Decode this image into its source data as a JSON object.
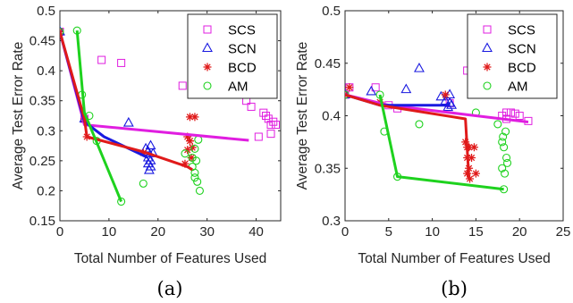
{
  "chart_data": [
    {
      "type": "scatter",
      "caption": "(a)",
      "xlabel": "Total Number of Features Used",
      "ylabel": "Average Test Error Rate",
      "xlim": [
        0,
        45
      ],
      "ylim": [
        0.15,
        0.5
      ],
      "xticks": [
        "0",
        "10",
        "20",
        "30",
        "40"
      ],
      "xtick_values": [
        0,
        10,
        20,
        30,
        40
      ],
      "yticks": [
        "0.15",
        "0.2",
        "0.25",
        "0.3",
        "0.35",
        "0.4",
        "0.45",
        "0.5"
      ],
      "ytick_values": [
        0.15,
        0.2,
        0.25,
        0.3,
        0.35,
        0.4,
        0.45,
        0.5
      ],
      "legend_position": "top-right",
      "series": [
        {
          "name": "SCS",
          "color": "#e01ee0",
          "marker": "square",
          "points": [
            [
              0,
              0.465
            ],
            [
              5,
              0.32
            ],
            [
              8.5,
              0.418
            ],
            [
              12.5,
              0.413
            ],
            [
              25,
              0.375
            ],
            [
              38,
              0.35
            ],
            [
              39,
              0.34
            ],
            [
              41,
              0.365
            ],
            [
              41.5,
              0.33
            ],
            [
              42,
              0.325
            ],
            [
              42.5,
              0.32
            ],
            [
              43,
              0.31
            ],
            [
              43.5,
              0.315
            ],
            [
              44,
              0.31
            ],
            [
              43,
              0.295
            ],
            [
              40.5,
              0.29
            ]
          ],
          "line": [
            [
              0,
              0.465
            ],
            [
              5,
              0.31
            ],
            [
              38.5,
              0.284
            ]
          ]
        },
        {
          "name": "SCN",
          "color": "#1a1ae0",
          "marker": "triangle",
          "points": [
            [
              0,
              0.465
            ],
            [
              5,
              0.32
            ],
            [
              14,
              0.313
            ],
            [
              17.5,
              0.27
            ],
            [
              18,
              0.265
            ],
            [
              18.5,
              0.275
            ],
            [
              18,
              0.255
            ],
            [
              18.5,
              0.25
            ],
            [
              18,
              0.245
            ],
            [
              18.5,
              0.24
            ],
            [
              19,
              0.262
            ],
            [
              18.2,
              0.234
            ]
          ],
          "line": [
            [
              0,
              0.465
            ],
            [
              5,
              0.315
            ],
            [
              9,
              0.29
            ],
            [
              18,
              0.255
            ]
          ]
        },
        {
          "name": "BCD",
          "color": "#e01a1a",
          "marker": "star",
          "points": [
            [
              0,
              0.465
            ],
            [
              5,
              0.32
            ],
            [
              5.5,
              0.29
            ],
            [
              17,
              0.263
            ],
            [
              25.5,
              0.245
            ],
            [
              26,
              0.268
            ],
            [
              26.5,
              0.283
            ],
            [
              26,
              0.29
            ],
            [
              26.5,
              0.323
            ],
            [
              27.5,
              0.323
            ],
            [
              27,
              0.272
            ],
            [
              26.8,
              0.255
            ]
          ],
          "line": [
            [
              0,
              0.465
            ],
            [
              5,
              0.32
            ],
            [
              5.5,
              0.29
            ],
            [
              17,
              0.265
            ],
            [
              26,
              0.24
            ],
            [
              27,
              0.235
            ]
          ]
        },
        {
          "name": "AM",
          "color": "#1ed21e",
          "marker": "circle",
          "points": [
            [
              0,
              0.465
            ],
            [
              3.5,
              0.467
            ],
            [
              4.5,
              0.36
            ],
            [
              6,
              0.325
            ],
            [
              7.5,
              0.283
            ],
            [
              12.5,
              0.182
            ],
            [
              17,
              0.212
            ],
            [
              25.5,
              0.262
            ],
            [
              27,
              0.24
            ],
            [
              27.5,
              0.23
            ],
            [
              27.5,
              0.222
            ],
            [
              28,
              0.215
            ],
            [
              28.5,
              0.2
            ],
            [
              27.5,
              0.27
            ],
            [
              27.8,
              0.25
            ],
            [
              28.2,
              0.285
            ],
            [
              27,
              0.255
            ]
          ],
          "line": [
            [
              3.5,
              0.467
            ],
            [
              5,
              0.33
            ],
            [
              12.5,
              0.182
            ]
          ]
        }
      ]
    },
    {
      "type": "scatter",
      "caption": "(b)",
      "xlabel": "Total Number of Features Used",
      "ylabel": "Average Test Error Rate",
      "xlim": [
        0,
        25
      ],
      "ylim": [
        0.3,
        0.5
      ],
      "xticks": [
        "0",
        "5",
        "10",
        "15",
        "20",
        "25"
      ],
      "xtick_values": [
        0,
        5,
        10,
        15,
        20,
        25
      ],
      "yticks": [
        "0.3",
        "0.35",
        "0.4",
        "0.45",
        "0.5"
      ],
      "ytick_values": [
        0.3,
        0.35,
        0.4,
        0.45,
        0.5
      ],
      "legend_position": "top-right",
      "series": [
        {
          "name": "SCS",
          "color": "#e01ee0",
          "marker": "square",
          "points": [
            [
              0,
              0.42
            ],
            [
              0.5,
              0.427
            ],
            [
              3.5,
              0.427
            ],
            [
              5,
              0.41
            ],
            [
              6,
              0.407
            ],
            [
              12,
              0.412
            ],
            [
              14,
              0.443
            ],
            [
              15.5,
              0.43
            ],
            [
              18,
              0.4
            ],
            [
              18.5,
              0.403
            ],
            [
              19,
              0.403
            ],
            [
              19.5,
              0.402
            ],
            [
              20,
              0.4
            ],
            [
              21,
              0.395
            ],
            [
              18.5,
              0.397
            ]
          ],
          "line": [
            [
              0,
              0.42
            ],
            [
              5,
              0.41
            ],
            [
              21,
              0.394
            ]
          ]
        },
        {
          "name": "SCN",
          "color": "#1a1ae0",
          "marker": "triangle",
          "points": [
            [
              0,
              0.42
            ],
            [
              3,
              0.423
            ],
            [
              7,
              0.425
            ],
            [
              8.5,
              0.445
            ],
            [
              11,
              0.418
            ],
            [
              11.5,
              0.414
            ],
            [
              12,
              0.42
            ],
            [
              12,
              0.412
            ],
            [
              11.8,
              0.408
            ],
            [
              12.2,
              0.41
            ]
          ],
          "line": [
            [
              0,
              0.42
            ],
            [
              4,
              0.41
            ],
            [
              12,
              0.41
            ]
          ]
        },
        {
          "name": "BCD",
          "color": "#e01a1a",
          "marker": "star",
          "points": [
            [
              0,
              0.42
            ],
            [
              0.5,
              0.427
            ],
            [
              4,
              0.413
            ],
            [
              11.5,
              0.42
            ],
            [
              13.8,
              0.375
            ],
            [
              14,
              0.37
            ],
            [
              14.2,
              0.37
            ],
            [
              14,
              0.36
            ],
            [
              14.2,
              0.35
            ],
            [
              14,
              0.345
            ],
            [
              14.3,
              0.34
            ],
            [
              15,
              0.345
            ],
            [
              14.5,
              0.36
            ],
            [
              14.8,
              0.37
            ]
          ],
          "line": [
            [
              0,
              0.42
            ],
            [
              4,
              0.41
            ],
            [
              13.8,
              0.397
            ],
            [
              14.2,
              0.34
            ]
          ]
        },
        {
          "name": "AM",
          "color": "#1ed21e",
          "marker": "circle",
          "points": [
            [
              0,
              0.42
            ],
            [
              4,
              0.42
            ],
            [
              4.5,
              0.385
            ],
            [
              6,
              0.342
            ],
            [
              8.5,
              0.392
            ],
            [
              15,
              0.403
            ],
            [
              17.5,
              0.392
            ],
            [
              18,
              0.375
            ],
            [
              18.2,
              0.37
            ],
            [
              18.5,
              0.36
            ],
            [
              18,
              0.35
            ],
            [
              18.3,
              0.345
            ],
            [
              18.1,
              0.38
            ],
            [
              18.4,
              0.385
            ],
            [
              18.6,
              0.355
            ],
            [
              18.2,
              0.33
            ]
          ],
          "line": [
            [
              4,
              0.42
            ],
            [
              6,
              0.342
            ],
            [
              18.2,
              0.33
            ]
          ]
        }
      ]
    }
  ]
}
